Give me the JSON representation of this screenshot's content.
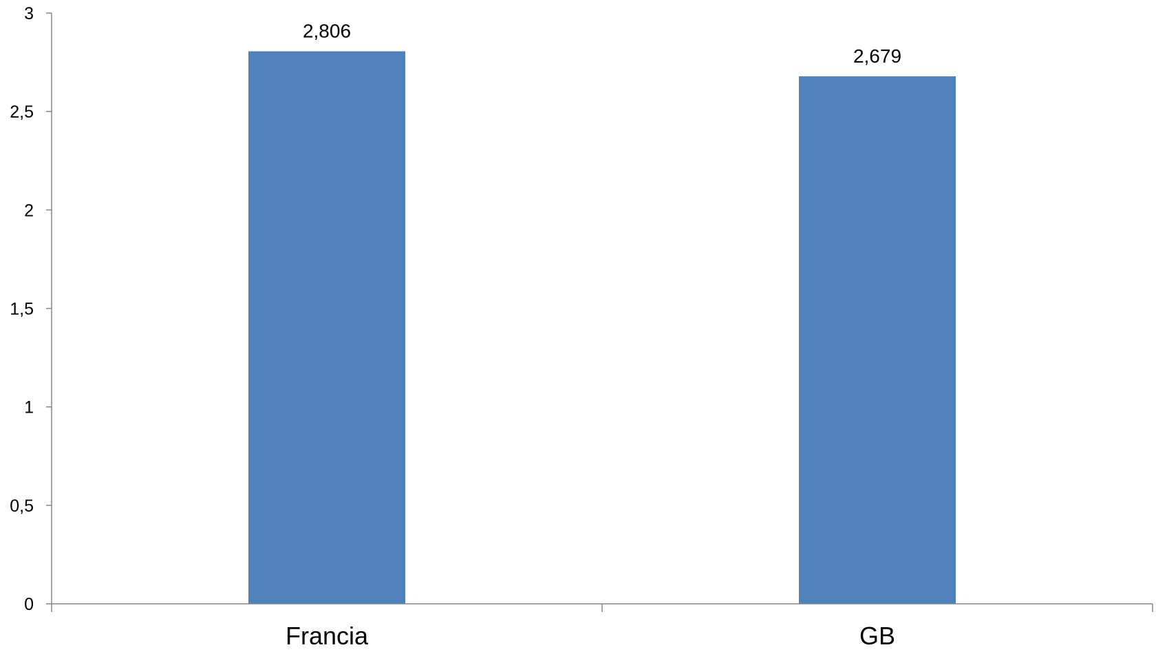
{
  "chart_data": {
    "type": "bar",
    "categories": [
      "Francia",
      "GB"
    ],
    "values": [
      2.806,
      2.679
    ],
    "data_labels": [
      "2,806",
      "2,679"
    ],
    "ylim": [
      0,
      3
    ],
    "yticks": [
      0,
      0.5,
      1,
      1.5,
      2,
      2.5,
      3
    ],
    "ytick_labels": [
      "0",
      "0,5",
      "1",
      "1,5",
      "2",
      "2,5",
      "3"
    ],
    "title": "",
    "xlabel": "",
    "ylabel": "",
    "grid": false,
    "legend": "none",
    "bar_color": "#4F81BD",
    "axis_color": "#868686"
  }
}
